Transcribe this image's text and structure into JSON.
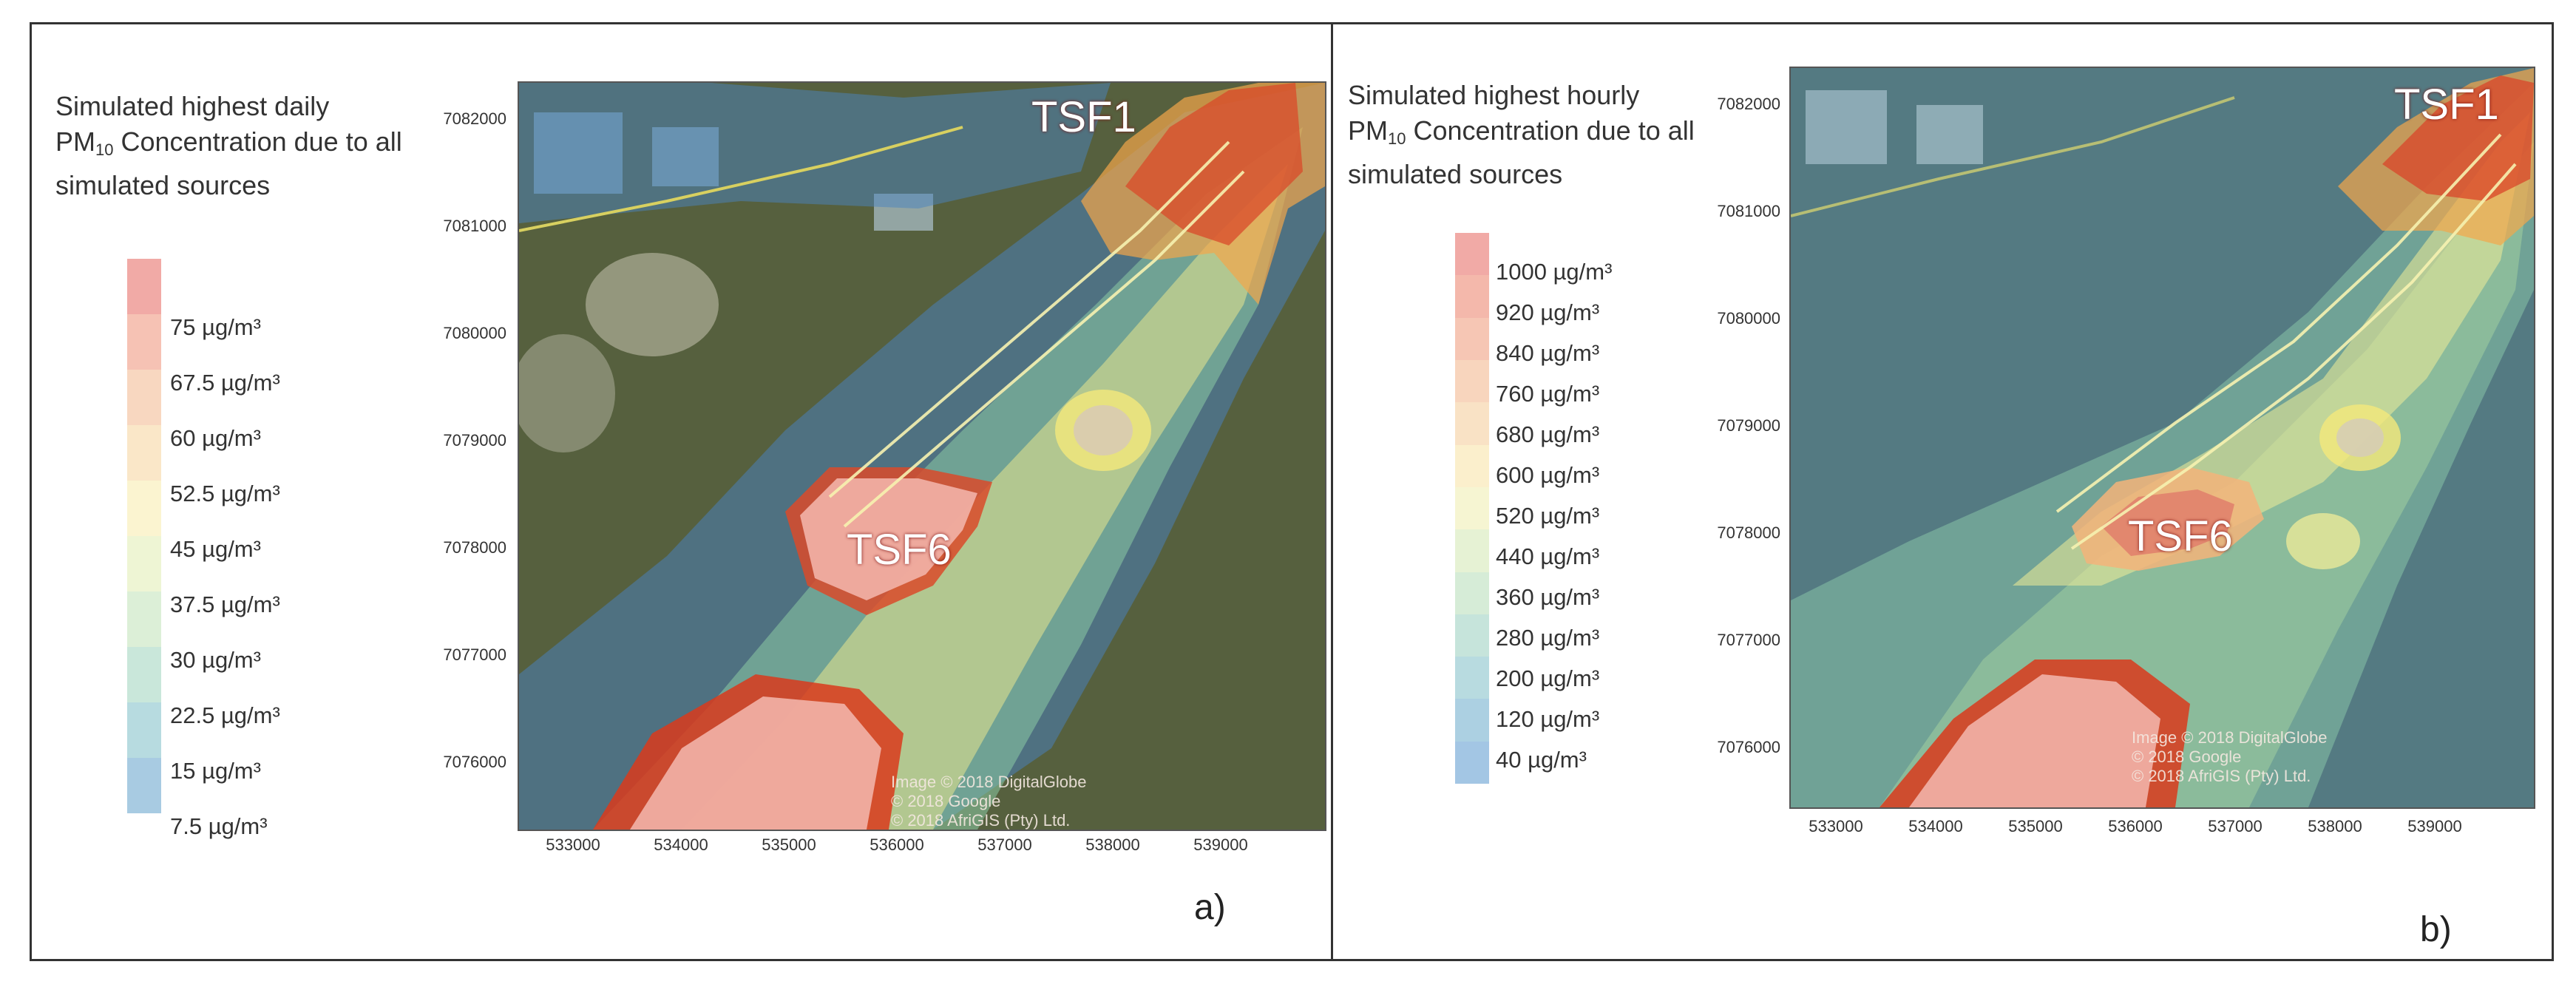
{
  "panel_a": {
    "title_line1": "Simulated highest daily",
    "title_pm": "PM",
    "title_pm_sub": "10",
    "title_line2_rest": " Concentration due to all",
    "title_line3": "simulated sources",
    "legend": [
      "75 µg/m³",
      "67.5 µg/m³",
      "60 µg/m³",
      "52.5 µg/m³",
      "45 µg/m³",
      "37.5 µg/m³",
      "30 µg/m³",
      "22.5 µg/m³",
      "15 µg/m³",
      "7.5 µg/m³"
    ],
    "y_ticks": [
      "7082000",
      "7081000",
      "7080000",
      "7079000",
      "7078000",
      "7077000",
      "7076000"
    ],
    "x_ticks": [
      "533000",
      "534000",
      "535000",
      "536000",
      "537000",
      "538000",
      "539000"
    ],
    "label_tsf1": "TSF1",
    "label_tsf6": "TSF6",
    "copyright": [
      "Image © 2018 DigitalGlobe",
      "© 2018 Google",
      "© 2018 AfriGIS (Pty) Ltd."
    ],
    "panel_letter": "a)"
  },
  "panel_b": {
    "title_line1": "Simulated highest hourly",
    "title_pm": "PM",
    "title_pm_sub": "10",
    "title_line2_rest": " Concentration due to all",
    "title_line3": "simulated sources",
    "legend": [
      "1000 µg/m³",
      "920 µg/m³",
      "840 µg/m³",
      "760 µg/m³",
      "680 µg/m³",
      "600 µg/m³",
      "520 µg/m³",
      "440 µg/m³",
      "360 µg/m³",
      "280 µg/m³",
      "200 µg/m³",
      "120 µg/m³",
      "40 µg/m³"
    ],
    "y_ticks": [
      "7082000",
      "7081000",
      "7080000",
      "7079000",
      "7078000",
      "7077000",
      "7076000"
    ],
    "x_ticks": [
      "533000",
      "534000",
      "535000",
      "536000",
      "537000",
      "538000",
      "539000"
    ],
    "label_tsf1": "TSF1",
    "label_tsf6": "TSF6",
    "copyright": [
      "Image © 2018 DigitalGlobe",
      "© 2018 Google",
      "© 2018 AfriGIS (Pty) Ltd."
    ],
    "panel_letter": "b)"
  },
  "colors": {
    "legend_a": [
      "#f1aaa6",
      "#f6c2b4",
      "#f8d7c0",
      "#fae7c8",
      "#fbf4d0",
      "#eef5d4",
      "#dcefd7",
      "#c9e7da",
      "#b7dbe0",
      "#a8cbe2"
    ],
    "legend_b": [
      "#f1aaa6",
      "#f4b8ab",
      "#f6c6b4",
      "#f8d5bd",
      "#f9e2c5",
      "#fbefcc",
      "#f6f5d2",
      "#e6f2d4",
      "#d6ecd7",
      "#c6e4db",
      "#b8dbe0",
      "#acd0e2",
      "#a3c6e4"
    ],
    "hot": "#d93a1c",
    "warm": "#f2a33a",
    "yellow": "#f4e87a",
    "green": "#8cc9a0",
    "blue": "#3f8ec9",
    "ground": "#5a6040"
  }
}
